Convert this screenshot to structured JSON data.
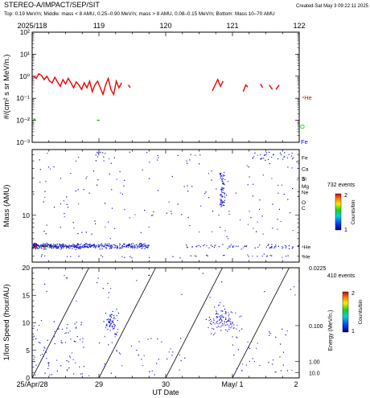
{
  "header": {
    "instrument": "STEREO-A/IMPACT/SEP/SIT",
    "created": "Created-Sat May  3 09:22:11 2025",
    "subtitle": "Top: 0.19 MeV/n; Middle: mass < 8 AMU, 0.25–0.90 MeV/n; mass > 8 AMU, 0.08–0.15 MeV/n; Bottom: Mass 10–70 AMU"
  },
  "top_axis_labels": [
    "2025/118",
    "119",
    "120",
    "121",
    "122"
  ],
  "bottom_axis_labels": [
    "25/Apr/28",
    "29",
    "30",
    "May/ 1",
    "2"
  ],
  "xlabel": "UT Date",
  "colors": {
    "he": "#ee0000",
    "o": "#00cc00",
    "fe": "#0000ee",
    "diag": "#000000"
  },
  "chart_data": [
    {
      "type": "line",
      "panel": "top",
      "ylabel": "#/(cm² s sr MeV/n.)",
      "yscale": "log",
      "ylim": [
        0.001,
        100
      ],
      "ytick_labels": [
        "10⁻³",
        "10⁻²",
        "10⁻¹",
        "10⁰",
        "10¹",
        "10²"
      ],
      "xlim": [
        118,
        122
      ],
      "series": [
        {
          "name": "⁴He",
          "color": "#ee0000",
          "segments": [
            [
              [
                118.02,
                1.0
              ],
              [
                118.06,
                0.8
              ],
              [
                118.1,
                1.3
              ],
              [
                118.14,
                1.1
              ],
              [
                118.18,
                0.7
              ],
              [
                118.22,
                1.0
              ],
              [
                118.26,
                0.6
              ],
              [
                118.3,
                0.5
              ],
              [
                118.34,
                0.9
              ],
              [
                118.38,
                0.55
              ],
              [
                118.42,
                0.35
              ],
              [
                118.46,
                0.7
              ],
              [
                118.5,
                0.45
              ],
              [
                118.54,
                0.8
              ],
              [
                118.58,
                0.5
              ],
              [
                118.62,
                0.3
              ],
              [
                118.66,
                0.55
              ],
              [
                118.7,
                0.4
              ],
              [
                118.74,
                0.25
              ],
              [
                118.78,
                0.5
              ],
              [
                118.82,
                0.3
              ],
              [
                118.86,
                0.6
              ],
              [
                118.9,
                0.2
              ],
              [
                118.94,
                0.4
              ],
              [
                118.98,
                0.6
              ],
              [
                119.02,
                0.3
              ],
              [
                119.06,
                0.15
              ],
              [
                119.1,
                0.4
              ],
              [
                119.14,
                0.8
              ],
              [
                119.18,
                0.25
              ],
              [
                119.22,
                0.15
              ],
              [
                119.26,
                0.6
              ],
              [
                119.3,
                0.3
              ],
              [
                119.34,
                0.5
              ]
            ],
            [
              [
                119.44,
                0.4
              ],
              [
                119.47,
                0.3
              ]
            ],
            [
              [
                120.7,
                0.22
              ],
              [
                120.74,
                0.4
              ],
              [
                120.78,
                0.7
              ],
              [
                120.82,
                0.35
              ],
              [
                120.86,
                0.6
              ]
            ],
            [
              [
                121.16,
                0.2
              ],
              [
                121.2,
                0.4
              ],
              [
                121.23,
                0.32
              ]
            ],
            [
              [
                121.42,
                0.45
              ],
              [
                121.45,
                0.3
              ]
            ],
            [
              [
                121.55,
                0.4
              ],
              [
                121.6,
                0.25
              ]
            ],
            [
              [
                121.65,
                0.25
              ],
              [
                121.7,
                0.4
              ]
            ]
          ]
        },
        {
          "name": "O",
          "color": "#00cc00",
          "segments": [
            [
              [
                118.02,
                0.012
              ],
              [
                118.05,
                0.01
              ]
            ],
            [
              [
                118.97,
                0.01
              ],
              [
                119.01,
                0.01
              ]
            ]
          ]
        },
        {
          "name": "Fe",
          "color": "#0000ee",
          "segments": []
        }
      ]
    },
    {
      "type": "scatter",
      "panel": "middle",
      "ylabel": "Mass (AMU)",
      "yscale": "log",
      "ylim": [
        2.5,
        70
      ],
      "ytick_labels": [
        "10"
      ],
      "xlim": [
        118,
        122
      ],
      "element_labels": [
        {
          "label": "Fe",
          "mass": 56
        },
        {
          "label": "Ca",
          "mass": 40
        },
        {
          "label": "Si",
          "mass": 28
        },
        {
          "label": "S",
          "mass": 32
        },
        {
          "label": "Mg",
          "mass": 24
        },
        {
          "label": "Ne",
          "mass": 20
        },
        {
          "label": "O",
          "mass": 16
        },
        {
          "label": "C",
          "mass": 12
        },
        {
          "label": "⁴He",
          "mass": 4
        },
        {
          "label": "³He",
          "mass": 3
        }
      ],
      "colorbar": {
        "events": "732 events",
        "label": "Counts/bin",
        "ticks": [
          "1",
          "2"
        ]
      }
    },
    {
      "type": "scatter",
      "panel": "bottom",
      "ylabel": "1/Ion Speed (hour/AU)",
      "yscale": "linear",
      "ylim": [
        0,
        20
      ],
      "ytick_labels": [
        "0",
        "5",
        "10",
        "15",
        "20"
      ],
      "xlim": [
        118,
        122
      ],
      "right_axis_label": "Energy (MeV/n.)",
      "right_ticks": [
        {
          "label": "0.0225",
          "speed": 20
        },
        {
          "label": "0.100",
          "speed": 9.5
        },
        {
          "label": "1.00",
          "speed": 3
        },
        {
          "label": "10.0",
          "speed": 0.95
        }
      ],
      "diagonal_onsets": [
        118.0,
        119.0,
        120.0,
        121.0
      ],
      "colorbar": {
        "events": "410 events",
        "label": "Counts/bin",
        "ticks": [
          "1",
          "2"
        ]
      }
    }
  ]
}
